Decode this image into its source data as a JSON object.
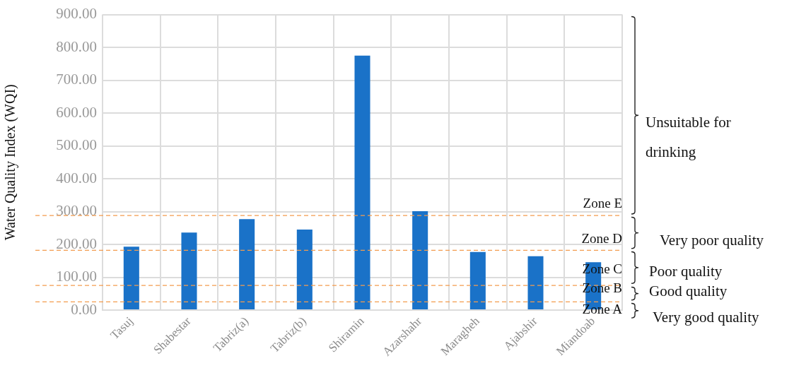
{
  "chart_data": {
    "type": "bar",
    "ylabel": "Water Quality Index (WQI)",
    "categories": [
      "Tasuj",
      "Shabestar",
      "Tabriz(a)",
      "Tabriz(b)",
      "Shiramin",
      "Azarshahr",
      "Maragheh",
      "Ajabshir",
      "Miandoab"
    ],
    "values": [
      193,
      236,
      277,
      245,
      775,
      301,
      177,
      164,
      146
    ],
    "color": "#1a72c8",
    "ylim": [
      0,
      900
    ],
    "yticks": [
      {
        "value": 0,
        "label": "0.00"
      },
      {
        "value": 100,
        "label": "100.00"
      },
      {
        "value": 200,
        "label": "200.00"
      },
      {
        "value": 300,
        "label": "300.00"
      },
      {
        "value": 400,
        "label": "400.00"
      },
      {
        "value": 500,
        "label": "500.00"
      },
      {
        "value": 600,
        "label": "600.00"
      },
      {
        "value": 700,
        "label": "700.00"
      },
      {
        "value": 800,
        "label": "800.00"
      },
      {
        "value": 900,
        "label": "900.00"
      }
    ],
    "grid": true,
    "ref_lines": [
      {
        "axis": "y",
        "value": 25,
        "color": "#f39c4e",
        "line_style": "dashed"
      },
      {
        "axis": "y",
        "value": 75,
        "color": "#f39c4e",
        "line_style": "dashed"
      },
      {
        "axis": "y",
        "value": 182,
        "color": "#f39c4e",
        "line_style": "dashed"
      },
      {
        "axis": "y",
        "value": 288,
        "color": "#f39c4e",
        "line_style": "dashed"
      }
    ],
    "annotations": [
      "Zone A",
      "Zone B",
      "Zone C",
      "Zone D",
      "Zone E",
      "Very good quality",
      "Good quality",
      "Poor quality",
      "Very poor quality",
      "Unsuitable for drinking"
    ]
  }
}
